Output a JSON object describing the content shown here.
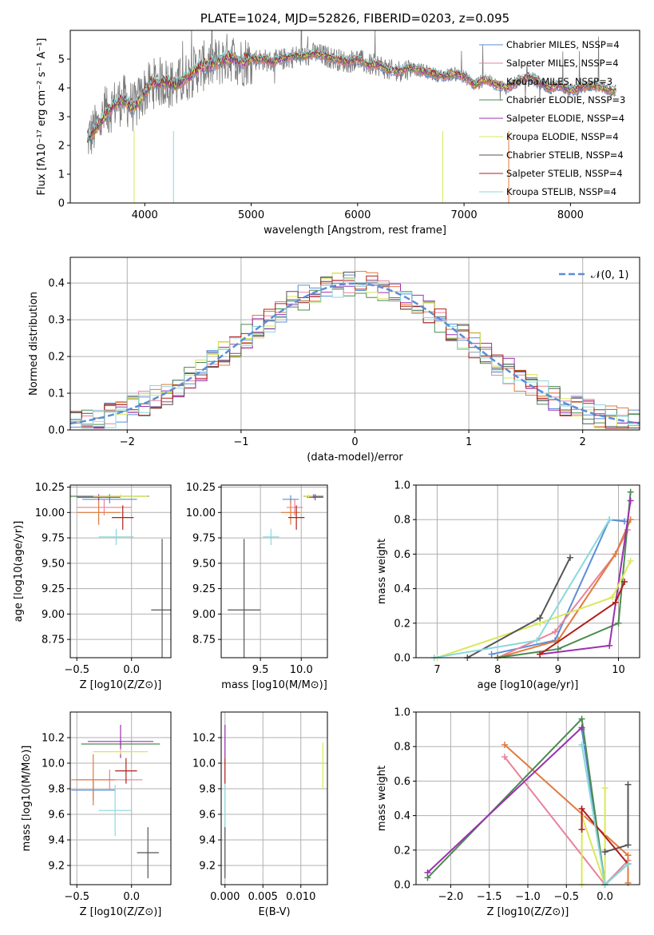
{
  "chart_data": [
    {
      "type": "line",
      "title": "PLATE=1024, MJD=52826, FIBERID=0203, z=0.095",
      "xlabel": "wavelength [Angstrom, rest frame]",
      "ylabel": "Flux [fλ10⁻¹⁷ erg cm⁻² s⁻¹ A⁻¹]",
      "xlim": [
        3300,
        8650
      ],
      "ylim": [
        0,
        6
      ],
      "xticks": [
        "4000",
        "5000",
        "6000",
        "7000",
        "8000"
      ],
      "yticks": [
        "0",
        "1",
        "2",
        "3",
        "4",
        "5"
      ],
      "observed_continuum": {
        "x": [
          3450,
          3500,
          3600,
          3700,
          3800,
          3900,
          4000,
          4100,
          4200,
          4300,
          4400,
          4500,
          4600,
          4700,
          4800,
          4900,
          5000,
          5100,
          5200,
          5300,
          5400,
          5500,
          5600,
          5700,
          5800,
          5900,
          6000,
          6100,
          6200,
          6300,
          6400,
          6500,
          6600,
          6700,
          6800,
          6900,
          7000,
          7100,
          7200,
          7300,
          7400,
          7500,
          7600,
          7700,
          7800,
          7900,
          8000,
          8100,
          8200,
          8300,
          8400
        ],
        "y": [
          2.2,
          2.4,
          2.9,
          3.4,
          3.6,
          3.3,
          3.9,
          4.2,
          4.2,
          4.1,
          4.4,
          4.7,
          4.8,
          4.9,
          5.1,
          4.9,
          5.0,
          5.0,
          4.9,
          5.0,
          5.1,
          5.1,
          5.2,
          5.1,
          5.0,
          4.9,
          5.0,
          4.8,
          4.8,
          4.6,
          4.6,
          4.7,
          4.6,
          4.5,
          4.4,
          4.5,
          4.4,
          4.1,
          4.3,
          4.1,
          4.0,
          4.2,
          4.4,
          4.2,
          4.0,
          4.1,
          3.9,
          4.0,
          4.1,
          4.0,
          3.9
        ]
      },
      "legend_position": "upper right",
      "series": [
        {
          "name": "Chabrier MILES, NSSP=4",
          "color": "#5b8ed6"
        },
        {
          "name": "Salpeter MILES, NSSP=4",
          "color": "#e8829c"
        },
        {
          "name": "Kroupa MILES, NSSP=3",
          "color": "#e07a3c"
        },
        {
          "name": "Chabrier ELODIE, NSSP=3",
          "color": "#4c8a4f"
        },
        {
          "name": "Salpeter ELODIE, NSSP=4",
          "color": "#9b30b0"
        },
        {
          "name": "Kroupa ELODIE, NSSP=4",
          "color": "#d9e85a"
        },
        {
          "name": "Chabrier STELIB, NSSP=4",
          "color": "#555555"
        },
        {
          "name": "Salpeter STELIB, NSSP=4",
          "color": "#b0201c"
        },
        {
          "name": "Kroupa STELIB, NSSP=4",
          "color": "#8ad8dc"
        }
      ]
    },
    {
      "type": "histogram",
      "xlabel": "(data-model)/error",
      "ylabel": "Normed distribution",
      "xlim": [
        -2.5,
        2.5
      ],
      "ylim": [
        0,
        0.47
      ],
      "xticks": [
        "−2",
        "−1",
        "0",
        "1",
        "2"
      ],
      "yticks": [
        "0.0",
        "0.1",
        "0.2",
        "0.3",
        "0.4"
      ],
      "grid": true,
      "bin_width": 0.1,
      "reference_curve": {
        "name": "𝒩(0, 1)",
        "style": "dashed",
        "color": "#5b8ed6"
      },
      "legend_position": "upper right"
    },
    {
      "type": "errorbar",
      "xlabel": "Z [log10(Z/Z⊙)]",
      "ylabel": "age  [log10(age/yr)]",
      "xlim": [
        -0.56,
        0.36
      ],
      "ylim": [
        8.57,
        10.27
      ],
      "xticks": [
        "−0.5",
        "0.0"
      ],
      "yticks": [
        "8.75",
        "9.00",
        "9.25",
        "9.50",
        "9.75",
        "10.00",
        "10.25"
      ],
      "points": [
        {
          "series": "Chabrier MILES",
          "x": -0.2,
          "xerr": 0.25,
          "y": 10.13,
          "yerr": 0.04
        },
        {
          "series": "Salpeter MILES",
          "x": -0.25,
          "xerr": 0.25,
          "y": 10.05,
          "yerr": 0.08
        },
        {
          "series": "Kroupa MILES",
          "x": -0.3,
          "xerr": 0.2,
          "y": 10.0,
          "yerr": 0.12
        },
        {
          "series": "Chabrier ELODIE",
          "x": -0.2,
          "xerr": 0.36,
          "y": 10.16,
          "yerr": 0.02
        },
        {
          "series": "Salpeter ELODIE",
          "x": -0.3,
          "xerr": 0.2,
          "y": 10.15,
          "yerr": 0.03
        },
        {
          "series": "Kroupa ELODIE",
          "x": -0.1,
          "xerr": 0.25,
          "y": 10.16,
          "yerr": 0.02
        },
        {
          "series": "Chabrier STELIB",
          "x": 0.28,
          "xerr": 0.1,
          "y": 9.04,
          "yerr": 0.7
        },
        {
          "series": "Salpeter STELIB",
          "x": -0.08,
          "xerr": 0.1,
          "y": 9.95,
          "yerr": 0.12
        },
        {
          "series": "Kroupa STELIB",
          "x": -0.14,
          "xerr": 0.16,
          "y": 9.76,
          "yerr": 0.08
        }
      ]
    },
    {
      "type": "errorbar",
      "xlabel": "mass [log10(M/M⊙)]",
      "ylabel": "",
      "xlim": [
        9.02,
        10.32
      ],
      "ylim": [
        8.57,
        10.27
      ],
      "xticks": [
        "9.5",
        "10.0"
      ],
      "yticks": [
        "8.75",
        "9.00",
        "9.25",
        "9.50",
        "9.75",
        "10.00",
        "10.25"
      ],
      "points": [
        {
          "series": "Chabrier MILES",
          "x": 9.87,
          "xerr": 0.1,
          "y": 10.13,
          "yerr": 0.04
        },
        {
          "series": "Salpeter MILES",
          "x": 9.92,
          "xerr": 0.1,
          "y": 10.05,
          "yerr": 0.08
        },
        {
          "series": "Kroupa MILES",
          "x": 9.87,
          "xerr": 0.12,
          "y": 10.0,
          "yerr": 0.12
        },
        {
          "series": "Chabrier ELODIE",
          "x": 10.15,
          "xerr": 0.12,
          "y": 10.16,
          "yerr": 0.02
        },
        {
          "series": "Salpeter ELODIE",
          "x": 10.17,
          "xerr": 0.1,
          "y": 10.15,
          "yerr": 0.03
        },
        {
          "series": "Kroupa ELODIE",
          "x": 10.09,
          "xerr": 0.05,
          "y": 10.16,
          "yerr": 0.02
        },
        {
          "series": "Chabrier STELIB",
          "x": 9.3,
          "xerr": 0.2,
          "y": 9.04,
          "yerr": 0.7
        },
        {
          "series": "Salpeter STELIB",
          "x": 9.94,
          "xerr": 0.1,
          "y": 9.95,
          "yerr": 0.12
        },
        {
          "series": "Kroupa STELIB",
          "x": 9.63,
          "xerr": 0.1,
          "y": 9.76,
          "yerr": 0.08
        }
      ]
    },
    {
      "type": "line",
      "xlabel": "age  [log10(age/yr)]",
      "ylabel": "mass weight",
      "xlim": [
        6.65,
        10.35
      ],
      "ylim": [
        0,
        1
      ],
      "xticks": [
        "7",
        "8",
        "9",
        "10"
      ],
      "yticks": [
        "0.0",
        "0.2",
        "0.4",
        "0.6",
        "0.8",
        "1.0"
      ],
      "grid": true,
      "series": [
        {
          "name": "Chabrier MILES",
          "x": [
            7.9,
            8.95,
            9.85,
            10.1
          ],
          "y": [
            0.02,
            0.1,
            0.8,
            0.79
          ]
        },
        {
          "name": "Salpeter MILES",
          "x": [
            8.0,
            8.95,
            9.95,
            10.15
          ],
          "y": [
            0.0,
            0.15,
            0.6,
            0.74
          ]
        },
        {
          "name": "Kroupa MILES",
          "x": [
            8.0,
            9.0,
            9.95,
            10.2
          ],
          "y": [
            0.0,
            0.1,
            0.6,
            0.8
          ]
        },
        {
          "name": "Chabrier ELODIE",
          "x": [
            8.0,
            9.0,
            10.0,
            10.2
          ],
          "y": [
            0.0,
            0.05,
            0.2,
            0.96
          ]
        },
        {
          "name": "Salpeter ELODIE",
          "x": [
            8.7,
            9.85,
            10.2
          ],
          "y": [
            0.02,
            0.07,
            0.91
          ]
        },
        {
          "name": "Kroupa ELODIE",
          "x": [
            7.0,
            8.7,
            9.9,
            10.2
          ],
          "y": [
            0.0,
            0.2,
            0.35,
            0.56
          ]
        },
        {
          "name": "Chabrier STELIB",
          "x": [
            7.5,
            8.7,
            9.2
          ],
          "y": [
            0.0,
            0.23,
            0.58
          ]
        },
        {
          "name": "Salpeter STELIB",
          "x": [
            8.7,
            9.95,
            10.1
          ],
          "y": [
            0.02,
            0.32,
            0.44
          ]
        },
        {
          "name": "Kroupa STELIB",
          "x": [
            6.95,
            8.65,
            9.85
          ],
          "y": [
            0.0,
            0.1,
            0.8
          ]
        }
      ]
    },
    {
      "type": "errorbar",
      "xlabel": "Z [log10(Z/Z⊙)]",
      "ylabel": "mass [log10(M/M⊙)]",
      "xlim": [
        -0.56,
        0.36
      ],
      "ylim": [
        9.05,
        10.4
      ],
      "xticks": [
        "−0.5",
        "0.0"
      ],
      "yticks": [
        "9.2",
        "9.4",
        "9.6",
        "9.8",
        "10.0",
        "10.2"
      ],
      "points": [
        {
          "series": "Chabrier MILES",
          "x": -0.35,
          "xerr": 0.2,
          "y": 9.79,
          "yerr": 0.08
        },
        {
          "series": "Salpeter MILES",
          "x": -0.2,
          "xerr": 0.3,
          "y": 9.87,
          "yerr": 0.08
        },
        {
          "series": "Kroupa MILES",
          "x": -0.35,
          "xerr": 0.2,
          "y": 9.87,
          "yerr": 0.2
        },
        {
          "series": "Chabrier ELODIE",
          "x": -0.1,
          "xerr": 0.36,
          "y": 10.15,
          "yerr": 0.02
        },
        {
          "series": "Salpeter ELODIE",
          "x": -0.1,
          "xerr": 0.3,
          "y": 10.17,
          "yerr": 0.13
        },
        {
          "series": "Kroupa ELODIE",
          "x": -0.1,
          "xerr": 0.25,
          "y": 10.09,
          "yerr": 0.02
        },
        {
          "series": "Chabrier STELIB",
          "x": 0.15,
          "xerr": 0.1,
          "y": 9.3,
          "yerr": 0.2
        },
        {
          "series": "Salpeter STELIB",
          "x": -0.05,
          "xerr": 0.1,
          "y": 9.94,
          "yerr": 0.1
        },
        {
          "series": "Kroupa STELIB",
          "x": -0.15,
          "xerr": 0.15,
          "y": 9.63,
          "yerr": 0.2
        }
      ]
    },
    {
      "type": "errorbar",
      "xlabel": "E(B-V)",
      "ylabel": "",
      "xlim": [
        -0.0005,
        0.0135
      ],
      "ylim": [
        9.05,
        10.4
      ],
      "xticks": [
        "0.000",
        "0.005",
        "0.010"
      ],
      "yticks": [
        "9.2",
        "9.4",
        "9.6",
        "9.8",
        "10.0",
        "10.2"
      ],
      "points": [
        {
          "series": "Salpeter ELODIE",
          "x": 0.0,
          "y": 10.17,
          "yerr": 0.13
        },
        {
          "series": "Salpeter STELIB",
          "x": 0.0,
          "y": 9.94,
          "yerr": 0.1
        },
        {
          "series": "Kroupa STELIB",
          "x": 0.0,
          "y": 9.63,
          "yerr": 0.2
        },
        {
          "series": "Chabrier STELIB",
          "x": 0.0,
          "y": 9.3,
          "yerr": 0.2
        },
        {
          "series": "Kroupa ELODIE",
          "x": 0.0129,
          "y": 9.98,
          "yerr": 0.18
        }
      ]
    },
    {
      "type": "line",
      "xlabel": "Z [log10(Z/Z⊙)]",
      "ylabel": "mass weight",
      "xlim": [
        -2.45,
        0.45
      ],
      "ylim": [
        0,
        1
      ],
      "xticks": [
        "−2.0",
        "−1.5",
        "−1.0",
        "−0.5",
        "0.0"
      ],
      "yticks": [
        "0.0",
        "0.2",
        "0.4",
        "0.6",
        "0.8",
        "1.0"
      ],
      "grid": true,
      "series": [
        {
          "name": "Chabrier MILES",
          "x": [
            -0.3,
            0.0,
            0.3
          ],
          "y": [
            0.9,
            0.0,
            0.12
          ]
        },
        {
          "name": "Salpeter MILES",
          "x": [
            -1.3,
            0.0,
            0.3
          ],
          "y": [
            0.74,
            0.0,
            0.14
          ]
        },
        {
          "name": "Kroupa MILES",
          "x": [
            -1.3,
            0.3,
            0.3
          ],
          "y": [
            0.81,
            0.17,
            0.01
          ]
        },
        {
          "name": "Chabrier ELODIE",
          "x": [
            -2.3,
            -0.3,
            0.0,
            0.3
          ],
          "y": [
            0.04,
            0.96,
            0.0,
            0.12
          ]
        },
        {
          "name": "Salpeter ELODIE",
          "x": [
            -2.3,
            -0.3
          ],
          "y": [
            0.07,
            0.91
          ]
        },
        {
          "name": "Kroupa ELODIE",
          "x": [
            -0.3,
            -0.3,
            0.0,
            0.0
          ],
          "y": [
            0.0,
            0.4,
            0.0,
            0.56
          ]
        },
        {
          "name": "Chabrier STELIB",
          "x": [
            0.0,
            0.3,
            0.3
          ],
          "y": [
            0.19,
            0.23,
            0.58
          ]
        },
        {
          "name": "Salpeter STELIB",
          "x": [
            -0.3,
            -0.3,
            0.3
          ],
          "y": [
            0.32,
            0.44,
            0.12
          ]
        },
        {
          "name": "Kroupa STELIB",
          "x": [
            -0.3,
            0.0,
            0.3
          ],
          "y": [
            0.81,
            0.0,
            0.12
          ]
        }
      ]
    }
  ]
}
